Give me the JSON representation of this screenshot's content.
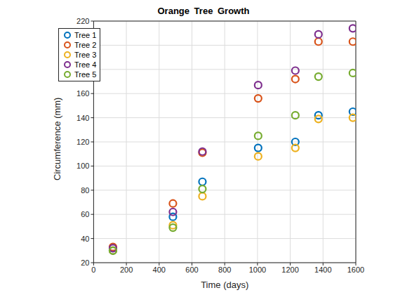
{
  "chart_data": {
    "type": "scatter",
    "title": "Orange Tree Growth",
    "x_label": "Time (days)",
    "y_label": "Circumference (mm)",
    "x": [
      118,
      484,
      664,
      1004,
      1231,
      1372,
      1582
    ],
    "series": [
      {
        "name": "Tree 1",
        "color": "#0072bd",
        "marker": "circle",
        "values": [
          30,
          58,
          87,
          115,
          120,
          142,
          145
        ]
      },
      {
        "name": "Tree 2",
        "color": "#d95319",
        "marker": "circle",
        "values": [
          33,
          69,
          111,
          156,
          172,
          203,
          203
        ]
      },
      {
        "name": "Tree 3",
        "color": "#edb120",
        "marker": "circle",
        "values": [
          30,
          51,
          75,
          108,
          115,
          139,
          140
        ]
      },
      {
        "name": "Tree 4",
        "color": "#7e2f8e",
        "marker": "circle",
        "values": [
          32,
          62,
          112,
          167,
          179,
          209,
          214
        ]
      },
      {
        "name": "Tree 5",
        "color": "#77ac30",
        "marker": "circle",
        "values": [
          30,
          49,
          81,
          125,
          142,
          174,
          177
        ]
      }
    ],
    "xlim": [
      0,
      1600
    ],
    "xticks": [
      0,
      200,
      400,
      600,
      800,
      1000,
      1200,
      1400,
      1600
    ],
    "ylim": [
      20,
      220
    ],
    "yticks": [
      20,
      40,
      60,
      80,
      100,
      120,
      140,
      160,
      180,
      200,
      220
    ],
    "grid": true,
    "legend": "northwest"
  }
}
